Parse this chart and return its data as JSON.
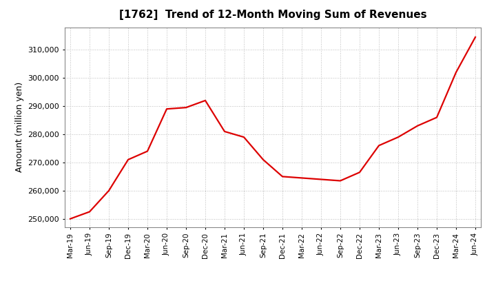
{
  "title": "[1762]  Trend of 12-Month Moving Sum of Revenues",
  "ylabel": "Amount (million yen)",
  "line_color": "#dd0000",
  "background_color": "#ffffff",
  "plot_bg_color": "#ffffff",
  "grid_color": "#bbbbbb",
  "ylim": [
    247000,
    318000
  ],
  "yticks": [
    250000,
    260000,
    270000,
    280000,
    290000,
    300000,
    310000
  ],
  "x_labels": [
    "Mar-19",
    "Jun-19",
    "Sep-19",
    "Dec-19",
    "Mar-20",
    "Jun-20",
    "Sep-20",
    "Dec-20",
    "Mar-21",
    "Jun-21",
    "Sep-21",
    "Dec-21",
    "Mar-22",
    "Jun-22",
    "Sep-22",
    "Dec-22",
    "Mar-23",
    "Jun-23",
    "Sep-23",
    "Dec-23",
    "Mar-24",
    "Jun-24"
  ],
  "values": [
    250000,
    252500,
    260000,
    271000,
    274000,
    289000,
    289500,
    292000,
    281000,
    279000,
    271000,
    265000,
    264500,
    264000,
    263500,
    266500,
    276000,
    279000,
    283000,
    286000,
    302000,
    314500
  ]
}
